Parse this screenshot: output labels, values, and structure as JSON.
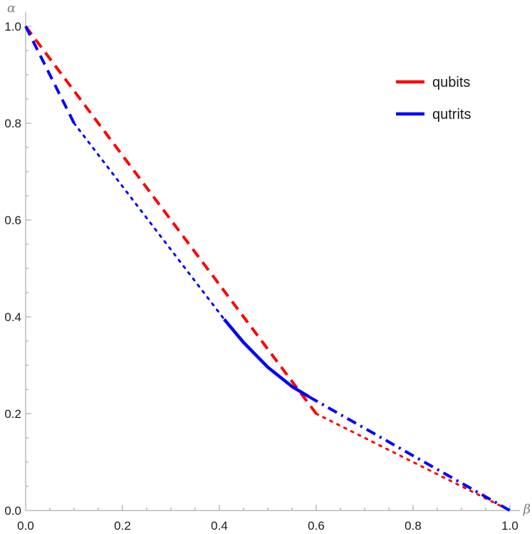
{
  "chart_data": {
    "type": "line",
    "xlabel": "β",
    "ylabel": "α",
    "xlim": [
      0,
      1
    ],
    "ylim": [
      0,
      1
    ],
    "x_ticks": [
      "0.0",
      "0.2",
      "0.4",
      "0.6",
      "0.8",
      "1.0"
    ],
    "y_ticks": [
      "0.0",
      "0.2",
      "0.4",
      "0.6",
      "0.8",
      "1.0"
    ],
    "grid": false,
    "legend_position": "top-right",
    "series": [
      {
        "name": "qubits",
        "color": "#ff0000",
        "segments": [
          {
            "style": "dashed",
            "points": [
              [
                0.0,
                1.0
              ],
              [
                0.6,
                0.2
              ]
            ]
          },
          {
            "style": "dotted",
            "points": [
              [
                0.6,
                0.2
              ],
              [
                1.0,
                0.0
              ]
            ]
          }
        ]
      },
      {
        "name": "qutrits",
        "color": "#0000ff",
        "segments": [
          {
            "style": "dashed",
            "points": [
              [
                0.0,
                1.0
              ],
              [
                0.1,
                0.8
              ]
            ]
          },
          {
            "style": "dotted",
            "points": [
              [
                0.1,
                0.8
              ],
              [
                0.41,
                0.395
              ]
            ]
          },
          {
            "style": "solid",
            "points": [
              [
                0.41,
                0.395
              ],
              [
                0.45,
                0.347
              ],
              [
                0.5,
                0.296
              ],
              [
                0.55,
                0.256
              ],
              [
                0.585,
                0.235
              ]
            ]
          },
          {
            "style": "dashdot",
            "points": [
              [
                0.585,
                0.235
              ],
              [
                1.0,
                0.0
              ]
            ]
          }
        ]
      }
    ]
  }
}
